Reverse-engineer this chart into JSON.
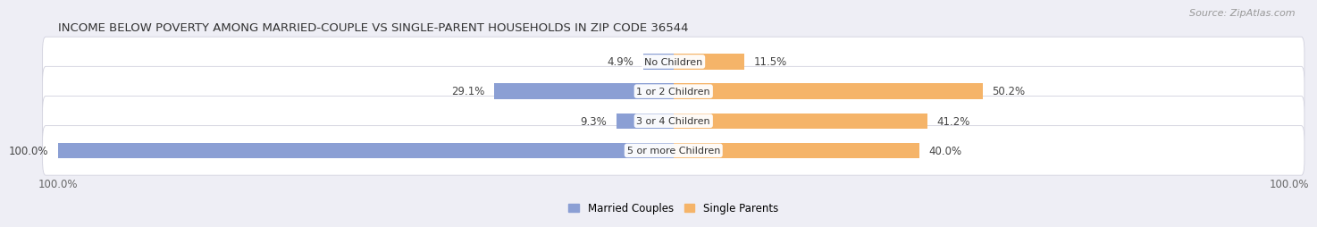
{
  "title": "INCOME BELOW POVERTY AMONG MARRIED-COUPLE VS SINGLE-PARENT HOUSEHOLDS IN ZIP CODE 36544",
  "source": "Source: ZipAtlas.com",
  "categories": [
    "No Children",
    "1 or 2 Children",
    "3 or 4 Children",
    "5 or more Children"
  ],
  "married_values": [
    4.9,
    29.1,
    9.3,
    100.0
  ],
  "single_values": [
    11.5,
    50.2,
    41.2,
    40.0
  ],
  "married_color": "#8b9fd4",
  "single_color": "#f5b469",
  "row_bg_color": "#e8e8ef",
  "background_color": "#eeeef5",
  "max_scale": 100.0,
  "title_fontsize": 9.5,
  "source_fontsize": 8,
  "label_fontsize": 8.5,
  "cat_fontsize": 8,
  "legend_labels": [
    "Married Couples",
    "Single Parents"
  ]
}
